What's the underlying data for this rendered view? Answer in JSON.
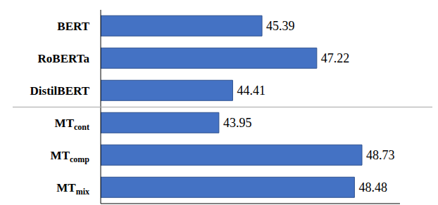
{
  "chart_data": {
    "type": "bar",
    "orientation": "horizontal",
    "categories": [
      "BERT",
      "RoBERTa",
      "DistilBERT",
      "MTcont",
      "MTcomp",
      "MTmix"
    ],
    "values": [
      45.39,
      47.22,
      44.41,
      43.95,
      48.73,
      48.48
    ],
    "color": "#4472c4",
    "xlim": [
      40,
      50
    ],
    "xticks": [],
    "data_labels": true,
    "tick_labels": "y",
    "grid": false
  }
}
